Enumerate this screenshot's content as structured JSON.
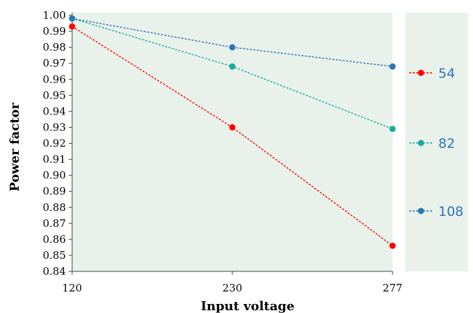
{
  "chart_data": {
    "type": "line",
    "xlabel": "Input voltage",
    "ylabel": "Power factor",
    "categories": [
      "120",
      "230",
      "277"
    ],
    "ylim": [
      0.84,
      1.0
    ],
    "yticks": [
      "0.84",
      "0.85",
      "0.86",
      "0.87",
      "0.88",
      "0.89",
      "0.90",
      "0.91",
      "0.92",
      "0.93",
      "0.94",
      "0.95",
      "0.96",
      "0.97",
      "0.98",
      "0.99",
      "1.00"
    ],
    "grid": false,
    "legend_position": "right",
    "series": [
      {
        "name": "54",
        "color": "#ff0000",
        "values": [
          0.993,
          0.93,
          0.856
        ]
      },
      {
        "name": "82",
        "color": "#1aaa9b",
        "values": [
          0.998,
          0.968,
          0.929
        ]
      },
      {
        "name": "108",
        "color": "#2e75b6",
        "values": [
          0.998,
          0.98,
          0.968
        ]
      }
    ]
  }
}
